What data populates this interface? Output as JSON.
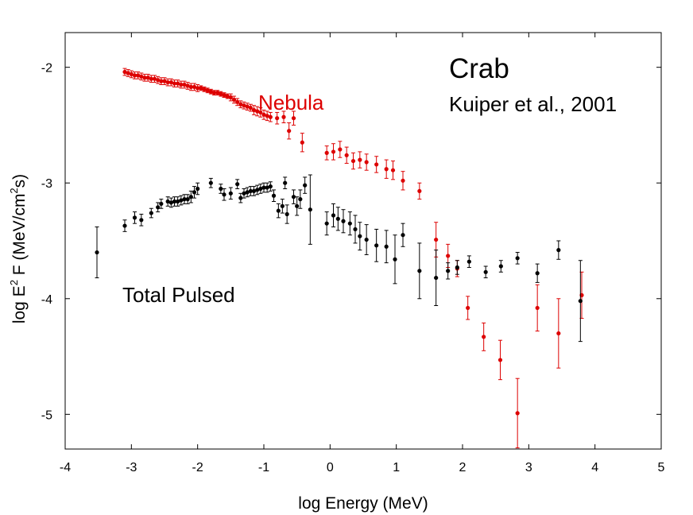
{
  "chart_data": {
    "type": "scatter",
    "title": "",
    "xlabel": "log Energy (MeV)",
    "ylabel_parts": [
      "log E",
      "2",
      " F (MeV/cm",
      "2",
      "s)"
    ],
    "xlim": [
      -4,
      5
    ],
    "ylim": [
      -5.3,
      -1.7
    ],
    "x_ticks": [
      -4,
      -3,
      -2,
      -1,
      0,
      1,
      2,
      3,
      4,
      5
    ],
    "x_tick_labels": [
      "-4",
      "-3",
      "-2",
      "-1",
      "0",
      "1",
      "2",
      "3",
      "4",
      "5"
    ],
    "y_ticks": [
      -2,
      -3,
      -4,
      -5
    ],
    "y_tick_labels": [
      "-2",
      "-3",
      "-4",
      "-5"
    ],
    "grid": false,
    "annotations": {
      "crab": "Crab",
      "reference": "Kuiper et al., 2001",
      "nebula": "Nebula",
      "pulsed": "Total Pulsed"
    },
    "series": [
      {
        "name": "Nebula",
        "color": "#dd0000",
        "points": [
          [
            -3.1,
            -2.04,
            0.03
          ],
          [
            -3.05,
            -2.05,
            0.03
          ],
          [
            -3.0,
            -2.06,
            0.03
          ],
          [
            -2.95,
            -2.07,
            0.03
          ],
          [
            -2.9,
            -2.07,
            0.03
          ],
          [
            -2.85,
            -2.08,
            0.03
          ],
          [
            -2.8,
            -2.09,
            0.03
          ],
          [
            -2.75,
            -2.09,
            0.03
          ],
          [
            -2.7,
            -2.1,
            0.03
          ],
          [
            -2.65,
            -2.1,
            0.03
          ],
          [
            -2.6,
            -2.11,
            0.03
          ],
          [
            -2.55,
            -2.12,
            0.03
          ],
          [
            -2.5,
            -2.12,
            0.03
          ],
          [
            -2.45,
            -2.13,
            0.03
          ],
          [
            -2.4,
            -2.13,
            0.03
          ],
          [
            -2.35,
            -2.14,
            0.03
          ],
          [
            -2.3,
            -2.14,
            0.03
          ],
          [
            -2.25,
            -2.15,
            0.03
          ],
          [
            -2.2,
            -2.15,
            0.03
          ],
          [
            -2.15,
            -2.16,
            0.03
          ],
          [
            -2.1,
            -2.17,
            0.03
          ],
          [
            -2.05,
            -2.17,
            0.03
          ],
          [
            -2.0,
            -2.18,
            0.03
          ],
          [
            -1.95,
            -2.18,
            0.02
          ],
          [
            -1.9,
            -2.19,
            0.02
          ],
          [
            -1.85,
            -2.2,
            0.02
          ],
          [
            -1.8,
            -2.21,
            0.02
          ],
          [
            -1.75,
            -2.22,
            0.02
          ],
          [
            -1.7,
            -2.22,
            0.02
          ],
          [
            -1.65,
            -2.23,
            0.02
          ],
          [
            -1.6,
            -2.24,
            0.02
          ],
          [
            -1.55,
            -2.25,
            0.02
          ],
          [
            -1.5,
            -2.26,
            0.03
          ],
          [
            -1.45,
            -2.28,
            0.03
          ],
          [
            -1.4,
            -2.3,
            0.03
          ],
          [
            -1.35,
            -2.32,
            0.03
          ],
          [
            -1.3,
            -2.33,
            0.03
          ],
          [
            -1.25,
            -2.34,
            0.03
          ],
          [
            -1.2,
            -2.35,
            0.03
          ],
          [
            -1.15,
            -2.37,
            0.04
          ],
          [
            -1.1,
            -2.38,
            0.04
          ],
          [
            -1.05,
            -2.39,
            0.04
          ],
          [
            -1.0,
            -2.41,
            0.04
          ],
          [
            -0.95,
            -2.42,
            0.04
          ],
          [
            -0.9,
            -2.43,
            0.04
          ],
          [
            -0.8,
            -2.44,
            0.05
          ],
          [
            -0.7,
            -2.43,
            0.05
          ],
          [
            -0.62,
            -2.55,
            0.07
          ],
          [
            -0.55,
            -2.44,
            0.06
          ],
          [
            -0.42,
            -2.65,
            0.08
          ],
          [
            -0.05,
            -2.74,
            0.06
          ],
          [
            0.05,
            -2.73,
            0.07
          ],
          [
            0.15,
            -2.71,
            0.07
          ],
          [
            0.25,
            -2.76,
            0.07
          ],
          [
            0.35,
            -2.81,
            0.07
          ],
          [
            0.45,
            -2.8,
            0.07
          ],
          [
            0.55,
            -2.82,
            0.07
          ],
          [
            0.7,
            -2.84,
            0.07
          ],
          [
            0.85,
            -2.88,
            0.08
          ],
          [
            0.95,
            -2.89,
            0.08
          ],
          [
            1.1,
            -2.98,
            0.08
          ],
          [
            1.35,
            -3.07,
            0.07
          ],
          [
            1.6,
            -3.49,
            0.15
          ],
          [
            1.78,
            -3.63,
            0.1
          ],
          [
            1.92,
            -3.74,
            0.07
          ],
          [
            2.08,
            -4.08,
            0.1
          ],
          [
            2.32,
            -4.33,
            0.12
          ],
          [
            2.57,
            -4.53,
            0.17
          ],
          [
            2.83,
            -4.99,
            0.3
          ],
          [
            3.13,
            -4.08,
            0.2
          ],
          [
            3.45,
            -4.3,
            0.3
          ],
          [
            3.8,
            -3.97,
            0.2
          ]
        ]
      },
      {
        "name": "Total Pulsed",
        "color": "#000000",
        "points": [
          [
            -3.52,
            -3.6,
            0.22
          ],
          [
            -3.1,
            -3.37,
            0.05
          ],
          [
            -2.95,
            -3.3,
            0.05
          ],
          [
            -2.85,
            -3.32,
            0.05
          ],
          [
            -2.7,
            -3.26,
            0.04
          ],
          [
            -2.6,
            -3.21,
            0.04
          ],
          [
            -2.55,
            -3.18,
            0.04
          ],
          [
            -2.45,
            -3.16,
            0.04
          ],
          [
            -2.4,
            -3.17,
            0.04
          ],
          [
            -2.35,
            -3.16,
            0.04
          ],
          [
            -2.3,
            -3.16,
            0.04
          ],
          [
            -2.25,
            -3.15,
            0.04
          ],
          [
            -2.2,
            -3.14,
            0.04
          ],
          [
            -2.15,
            -3.14,
            0.04
          ],
          [
            -2.1,
            -3.12,
            0.05
          ],
          [
            -2.05,
            -3.08,
            0.05
          ],
          [
            -2.0,
            -3.05,
            0.05
          ],
          [
            -1.8,
            -3.0,
            0.04
          ],
          [
            -1.65,
            -3.05,
            0.04
          ],
          [
            -1.6,
            -3.1,
            0.05
          ],
          [
            -1.5,
            -3.09,
            0.05
          ],
          [
            -1.4,
            -3.01,
            0.04
          ],
          [
            -1.35,
            -3.13,
            0.04
          ],
          [
            -1.3,
            -3.09,
            0.04
          ],
          [
            -1.25,
            -3.08,
            0.04
          ],
          [
            -1.2,
            -3.07,
            0.04
          ],
          [
            -1.15,
            -3.07,
            0.04
          ],
          [
            -1.1,
            -3.06,
            0.04
          ],
          [
            -1.05,
            -3.05,
            0.04
          ],
          [
            -1.0,
            -3.04,
            0.04
          ],
          [
            -0.95,
            -3.04,
            0.04
          ],
          [
            -0.9,
            -3.03,
            0.04
          ],
          [
            -0.85,
            -3.11,
            0.05
          ],
          [
            -0.78,
            -3.24,
            0.06
          ],
          [
            -0.72,
            -3.2,
            0.06
          ],
          [
            -0.68,
            -3.0,
            0.05
          ],
          [
            -0.65,
            -3.27,
            0.08
          ],
          [
            -0.55,
            -3.12,
            0.06
          ],
          [
            -0.5,
            -3.2,
            0.08
          ],
          [
            -0.45,
            -3.14,
            0.08
          ],
          [
            -0.38,
            -3.02,
            0.07
          ],
          [
            -0.3,
            -3.23,
            0.3
          ],
          [
            -0.05,
            -3.35,
            0.1
          ],
          [
            0.05,
            -3.28,
            0.1
          ],
          [
            0.12,
            -3.31,
            0.1
          ],
          [
            0.2,
            -3.33,
            0.1
          ],
          [
            0.3,
            -3.35,
            0.1
          ],
          [
            0.38,
            -3.4,
            0.12
          ],
          [
            0.45,
            -3.46,
            0.12
          ],
          [
            0.55,
            -3.49,
            0.13
          ],
          [
            0.7,
            -3.54,
            0.14
          ],
          [
            0.85,
            -3.55,
            0.14
          ],
          [
            0.98,
            -3.66,
            0.21
          ],
          [
            1.1,
            -3.45,
            0.1
          ],
          [
            1.35,
            -3.76,
            0.24
          ],
          [
            1.6,
            -3.82,
            0.24
          ],
          [
            1.78,
            -3.76,
            0.07
          ],
          [
            1.92,
            -3.73,
            0.06
          ],
          [
            2.1,
            -3.68,
            0.05
          ],
          [
            2.35,
            -3.77,
            0.05
          ],
          [
            2.58,
            -3.72,
            0.05
          ],
          [
            2.83,
            -3.65,
            0.05
          ],
          [
            3.13,
            -3.78,
            0.08
          ],
          [
            3.45,
            -3.58,
            0.08
          ],
          [
            3.78,
            -4.02,
            0.35
          ]
        ]
      }
    ]
  }
}
